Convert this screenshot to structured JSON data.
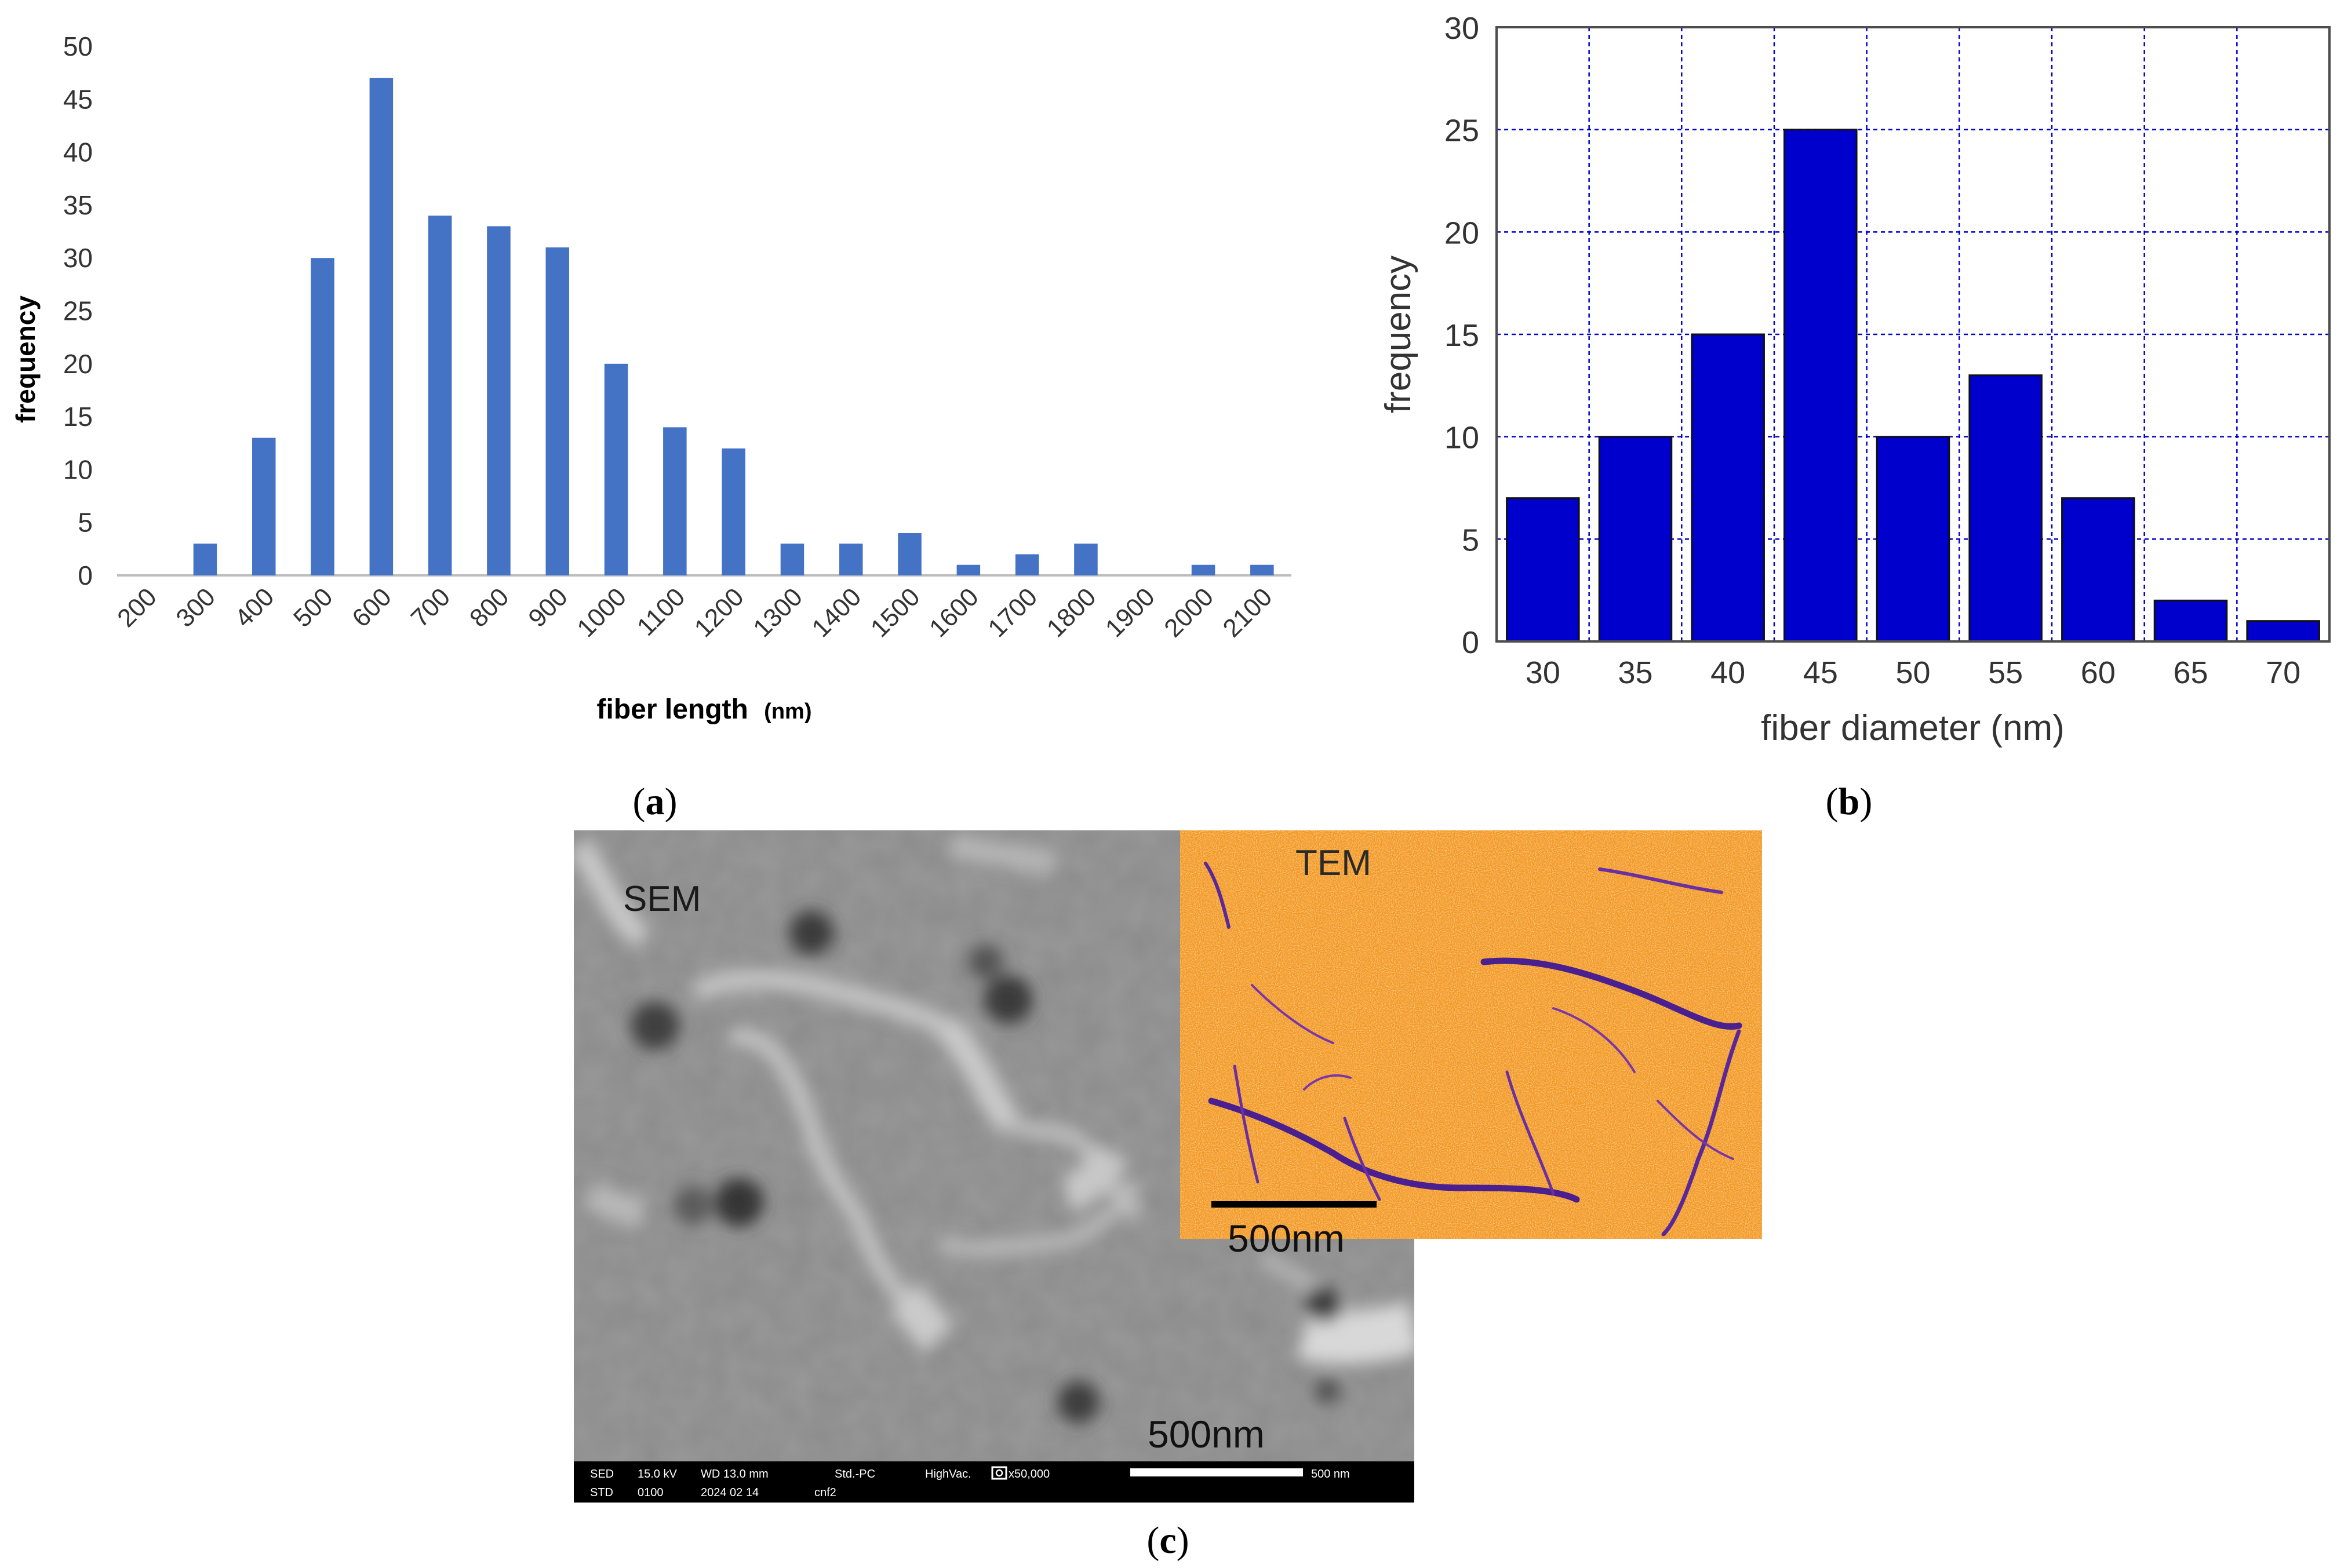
{
  "figure": {
    "panel_labels": {
      "a": "a",
      "b": "b",
      "c": "c"
    }
  },
  "chart_data": [
    {
      "id": "a",
      "type": "bar",
      "title": "",
      "xlabel": "fiber length",
      "xlabel_unit": "(nm)",
      "ylabel": "frequency",
      "categories": [
        "200",
        "300",
        "400",
        "500",
        "600",
        "700",
        "800",
        "900",
        "1000",
        "1100",
        "1200",
        "1300",
        "1400",
        "1500",
        "1600",
        "1700",
        "1800",
        "1900",
        "2000",
        "2100"
      ],
      "values": [
        0,
        3,
        13,
        30,
        47,
        34,
        33,
        31,
        20,
        14,
        12,
        3,
        3,
        4,
        1,
        2,
        3,
        0,
        1,
        1
      ],
      "ylim": [
        0,
        50
      ],
      "yticks": [
        0,
        5,
        10,
        15,
        20,
        25,
        30,
        35,
        40,
        45,
        50
      ],
      "grid": false,
      "color": "#4472C4"
    },
    {
      "id": "b",
      "type": "bar",
      "title": "",
      "xlabel": "fiber diameter (nm)",
      "ylabel": "frequency",
      "categories": [
        "30",
        "35",
        "40",
        "45",
        "50",
        "55",
        "60",
        "65",
        "70"
      ],
      "values": [
        7,
        10,
        15,
        25,
        10,
        13,
        7,
        2,
        1
      ],
      "ylim": [
        0,
        30
      ],
      "yticks": [
        0,
        5,
        10,
        15,
        20,
        25,
        30
      ],
      "grid": true,
      "color": "#0000CC",
      "grid_color": "#0000CC"
    }
  ],
  "images": {
    "sem": {
      "label": "SEM",
      "scale_label": "500nm",
      "info_line1": [
        "SED",
        "15.0 kV",
        "WD 13.0 mm",
        "Std.-PC",
        "HighVac.",
        "x50,000",
        "500 nm"
      ],
      "info_line2": [
        "STD",
        "0100",
        "2024 02 14",
        "cnf2"
      ]
    },
    "tem": {
      "label": "TEM",
      "scale_label": "500nm"
    }
  },
  "colors": {
    "sem_bg": "#8a8a8a",
    "tem_bg": "#f39a1e",
    "tem_fiber": "#4a1f8f"
  }
}
